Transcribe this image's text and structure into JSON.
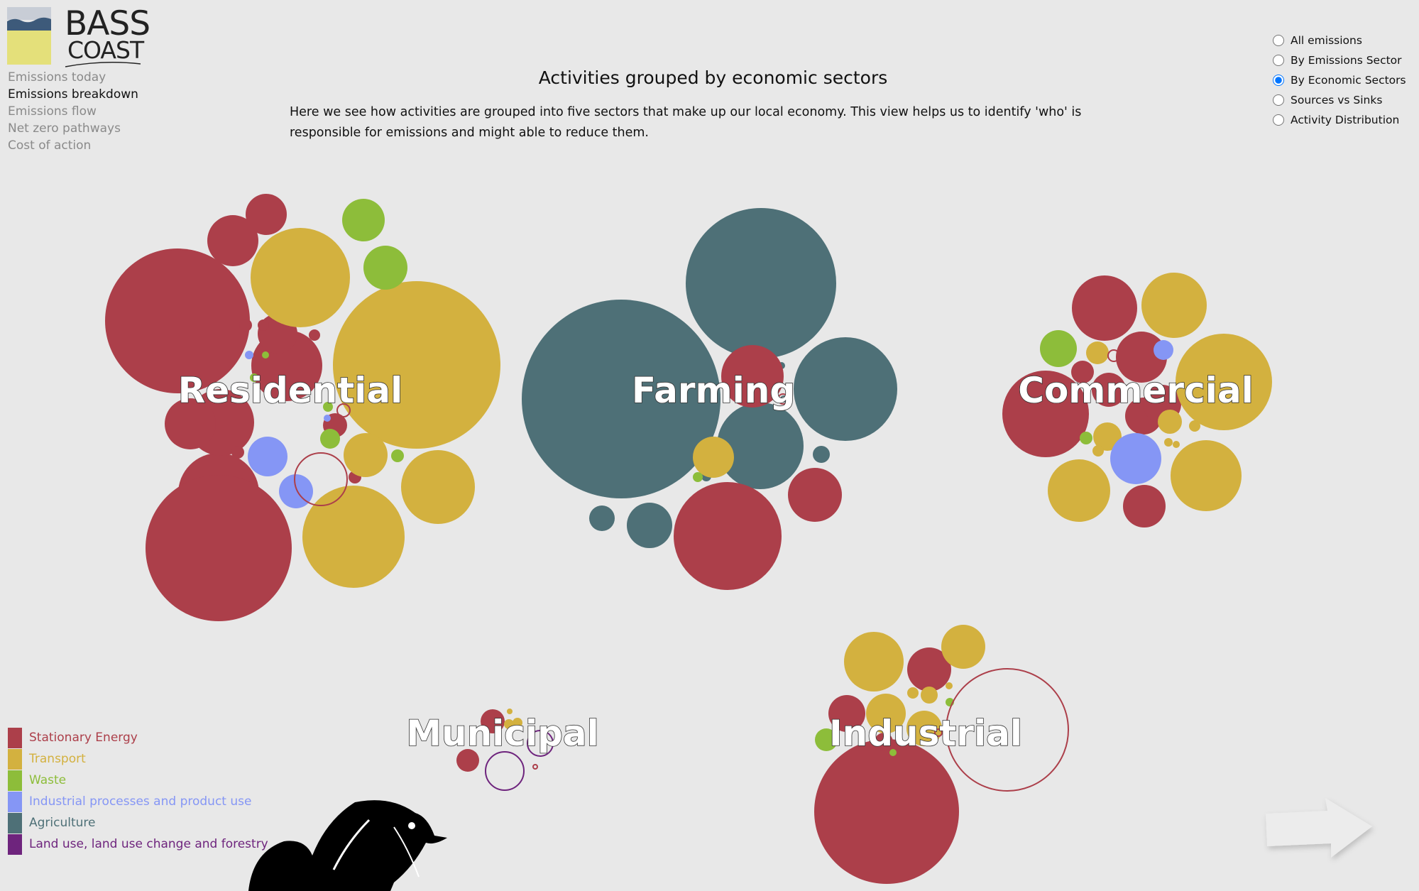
{
  "brand": {
    "line1": "BASS",
    "line2": "COAST"
  },
  "nav": {
    "items": [
      {
        "label": "Emissions today",
        "active": false
      },
      {
        "label": "Emissions breakdown",
        "active": true
      },
      {
        "label": "Emissions flow",
        "active": false
      },
      {
        "label": "Net zero pathways",
        "active": false
      },
      {
        "label": "Cost of action",
        "active": false
      }
    ]
  },
  "page": {
    "title": "Activities grouped by economic sectors",
    "description": "Here we see how activities are grouped into five sectors that make up our local economy. This view helps us to identify 'who' is responsible for emissions and might able to reduce them."
  },
  "view_options": {
    "options": [
      "All emissions",
      "By Emissions Sector",
      "By Economic Sectors",
      "Sources vs Sinks",
      "Activity Distribution"
    ],
    "selected": "By Economic Sectors"
  },
  "legend": {
    "items": [
      {
        "label": "Stationary Energy",
        "color": "#ac3f4a"
      },
      {
        "label": "Transport",
        "color": "#d3b13f"
      },
      {
        "label": "Waste",
        "color": "#8dbd3a"
      },
      {
        "label": "Industrial processes and product use",
        "color": "#8596f5"
      },
      {
        "label": "Agriculture",
        "color": "#4e7077"
      },
      {
        "label": "Land use, land use change and forestry",
        "color": "#6e247d"
      }
    ]
  },
  "chart_data": {
    "type": "bubble-cluster",
    "title": "Activities grouped by economic sectors",
    "color_key": {
      "Stationary Energy": "#ac3f4a",
      "Transport": "#d3b13f",
      "Waste": "#8dbd3a",
      "Industrial processes and product use": "#8596f5",
      "Agriculture": "#4e7077",
      "Land use, land use change and forestry": "#6e247d"
    },
    "clusters": [
      {
        "label": "Residential"
      },
      {
        "label": "Farming"
      },
      {
        "label": "Commercial"
      },
      {
        "label": "Municipal"
      },
      {
        "label": "Industrial"
      }
    ]
  },
  "next_icon": "arrow-right-icon",
  "decor_icon": "bird-silhouette-icon"
}
